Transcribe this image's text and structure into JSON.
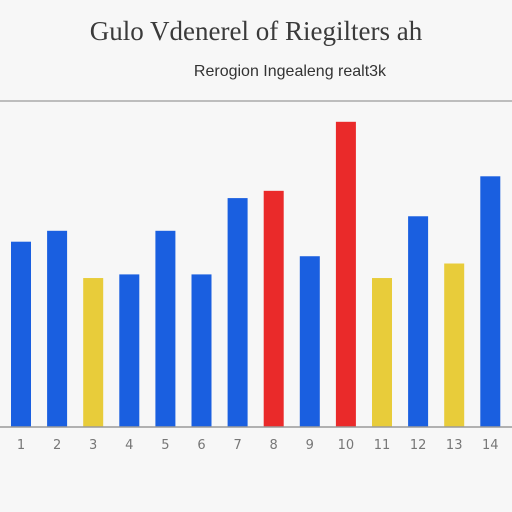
{
  "chart_data": {
    "type": "bar",
    "title": "Gulo Vdenerel of Riegilters ah",
    "subtitle": "Rerogion Ingealeng realt3k",
    "categories": [
      "1",
      "2",
      "3",
      "4",
      "5",
      "6",
      "7",
      "8",
      "9",
      "10",
      "11",
      "12",
      "13",
      "14"
    ],
    "values": [
      51,
      54,
      41,
      42,
      54,
      42,
      63,
      65,
      47,
      84,
      41,
      58,
      45,
      69
    ],
    "bar_colors": [
      "#1a5fe0",
      "#1a5fe0",
      "#e8cc3a",
      "#1a5fe0",
      "#1a5fe0",
      "#1a5fe0",
      "#1a5fe0",
      "#ea2a2a",
      "#1a5fe0",
      "#ea2a2a",
      "#e8cc3a",
      "#1a5fe0",
      "#e8cc3a",
      "#1a5fe0"
    ],
    "ylim": [
      0,
      90
    ],
    "grid": false,
    "legend": "none"
  }
}
